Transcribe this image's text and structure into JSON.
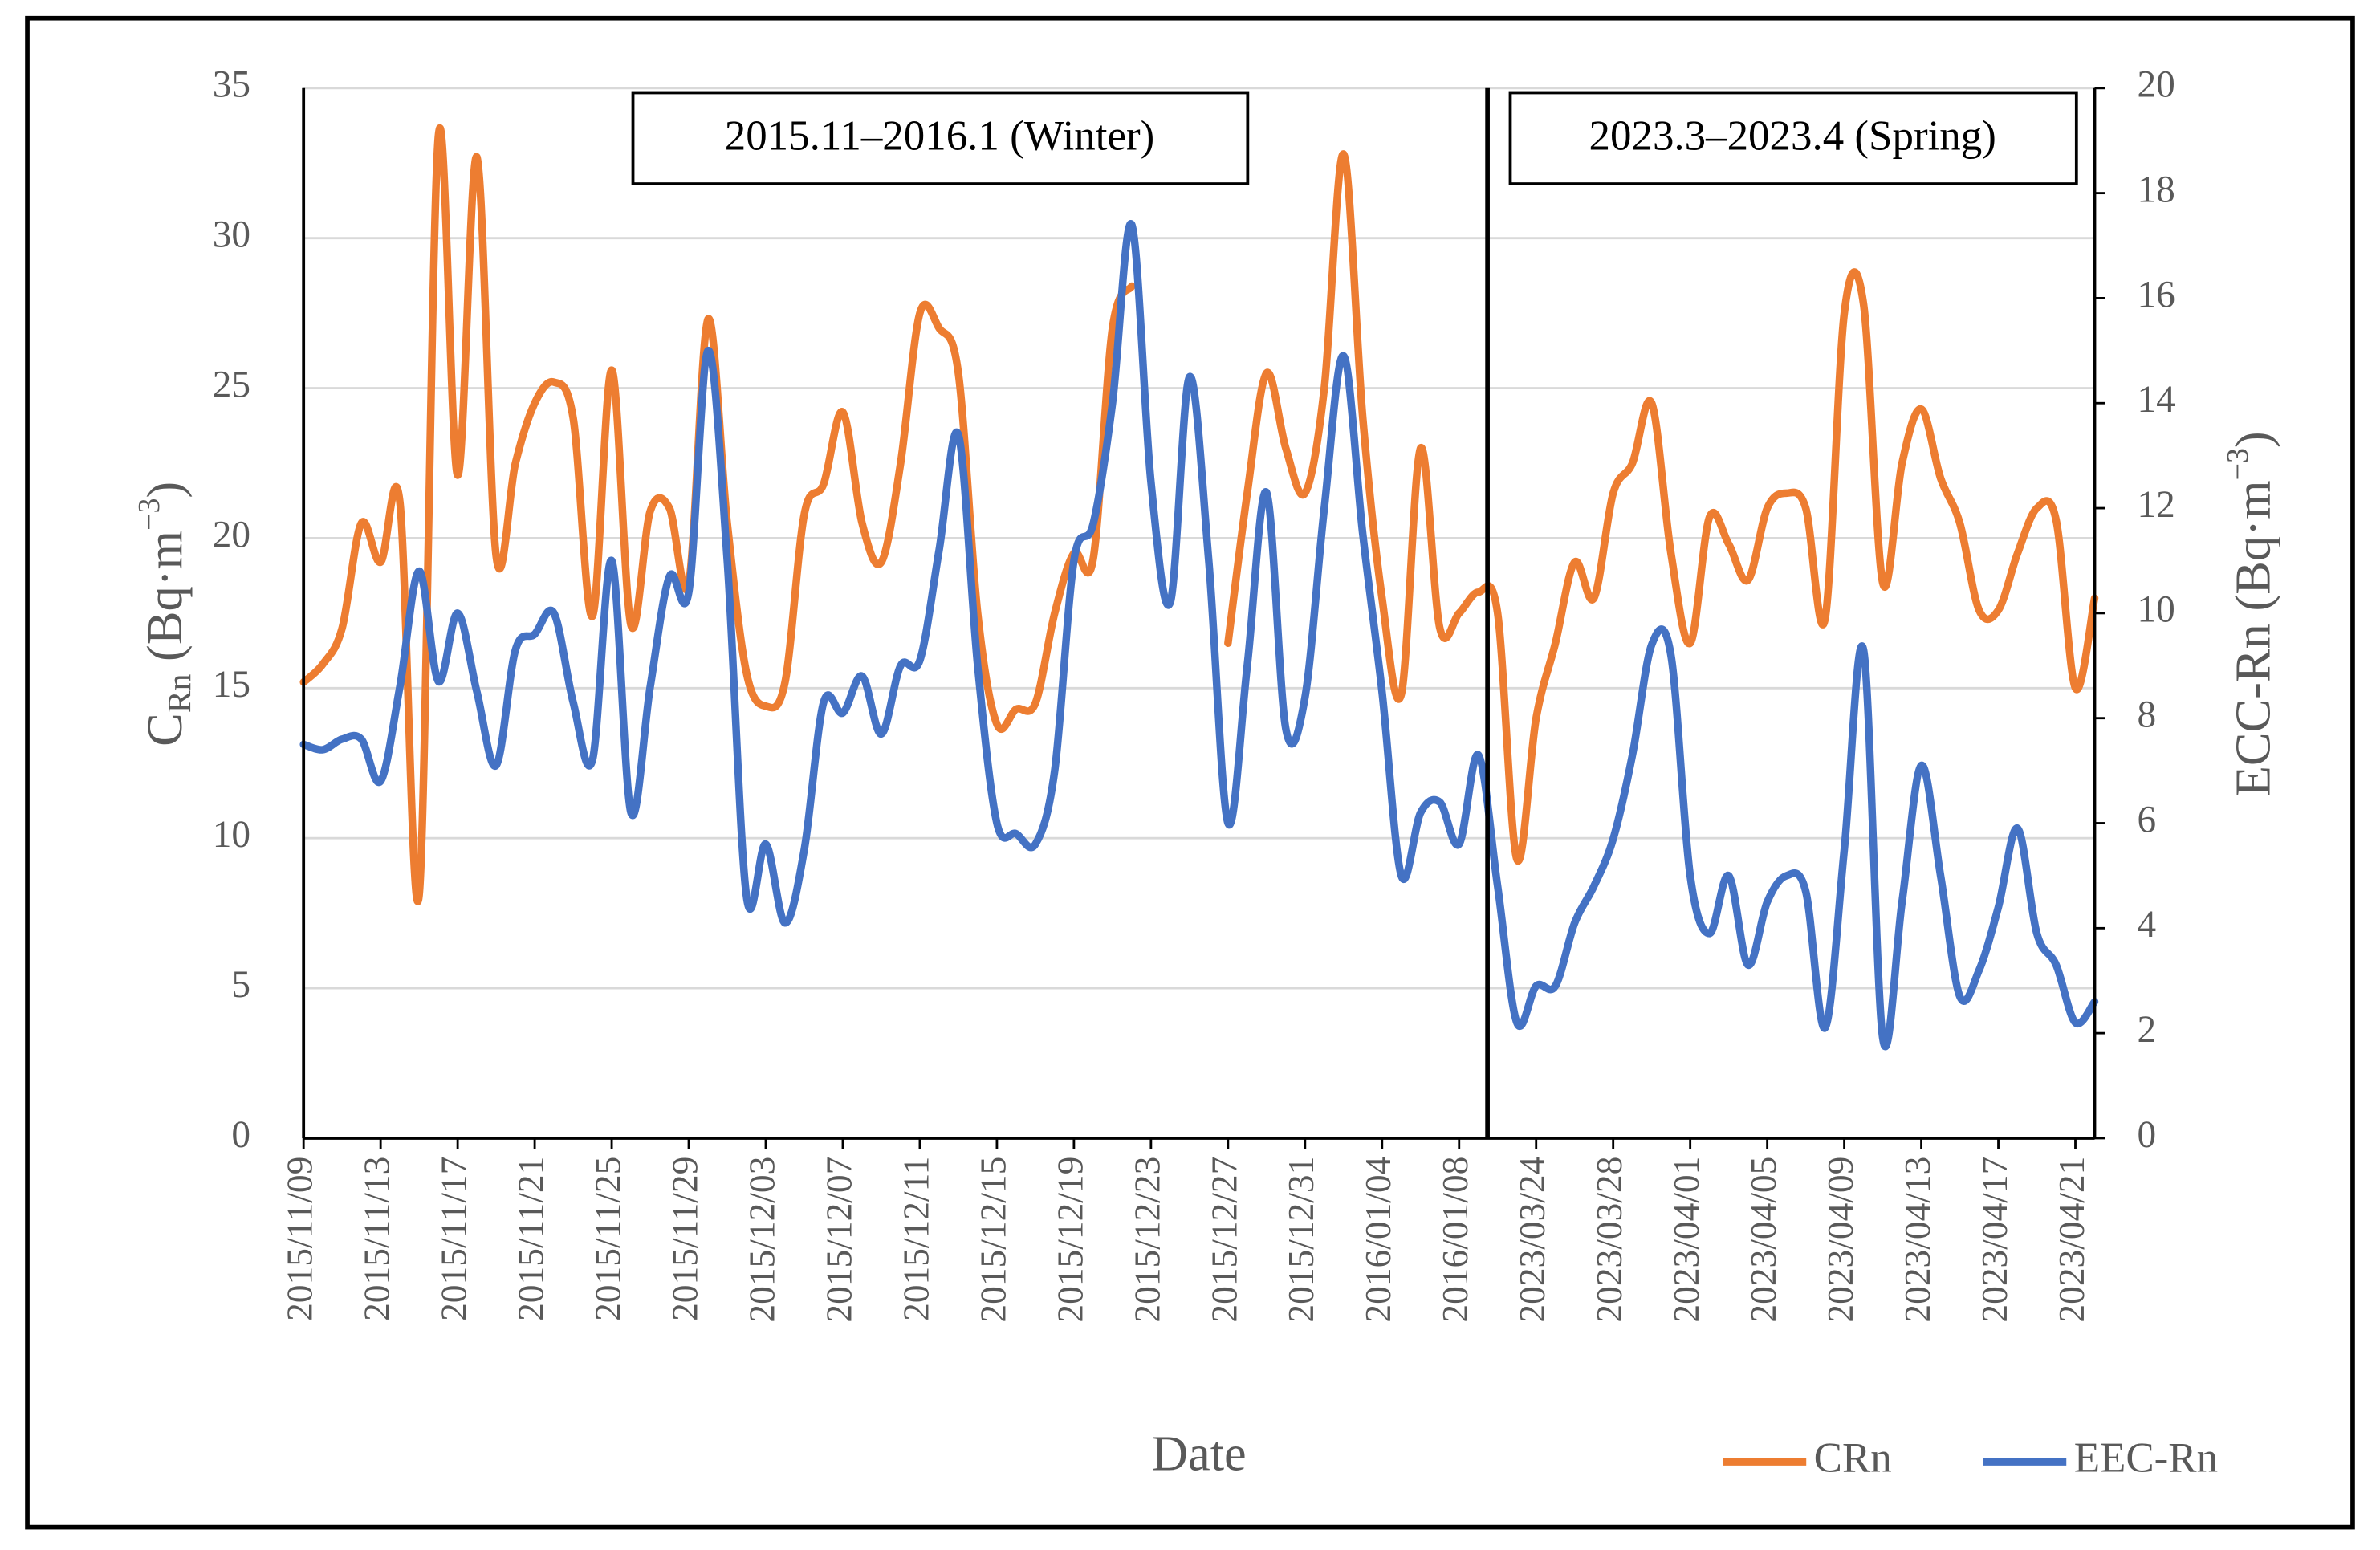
{
  "chart_data": {
    "type": "line",
    "xlabel": "Date",
    "ylabel": {
      "main": "C",
      "sub": "Rn",
      "unit": " (Bq·m",
      "sup": "−3",
      "end": ")"
    },
    "y2label": {
      "main": "ECC-Rn",
      "unit": " (Bq·m",
      "sup": "−3",
      "end": ")"
    },
    "annotations": [
      "2015.11–2016.1 (Winter)",
      "2023.3–2023.4 (Spring)"
    ],
    "categories": [
      "2015/11/09",
      null,
      null,
      null,
      "2015/11/13",
      null,
      null,
      null,
      "2015/11/17",
      null,
      null,
      null,
      "2015/11/21",
      null,
      null,
      null,
      "2015/11/25",
      null,
      null,
      null,
      "2015/11/29",
      null,
      null,
      null,
      "2015/12/03",
      null,
      null,
      null,
      "2015/12/07",
      null,
      null,
      null,
      "2015/12/11",
      null,
      null,
      null,
      "2015/12/15",
      null,
      null,
      null,
      "2015/12/19",
      null,
      null,
      null,
      "2015/12/23",
      null,
      null,
      null,
      "2015/12/27",
      null,
      null,
      null,
      "2015/12/31",
      null,
      null,
      null,
      "2016/01/04",
      null,
      null,
      null,
      "2016/01/08",
      null,
      null,
      null,
      "2023/03/24",
      null,
      null,
      null,
      "2023/03/28",
      null,
      null,
      null,
      "2023/04/01",
      null,
      null,
      null,
      "2023/04/05",
      null,
      null,
      null,
      "2023/04/09",
      null,
      null,
      null,
      "2023/04/13",
      null,
      null,
      null,
      "2023/04/17",
      null,
      null,
      null,
      "2023/04/21",
      null
    ],
    "series": [
      {
        "name": "CRn",
        "color": "#ed7d31",
        "values": [
          15.2,
          15.8,
          17.0,
          20.5,
          19.2,
          21.2,
          8.1,
          33.4,
          22.1,
          32.7,
          19.4,
          22.5,
          24.5,
          25.2,
          24.0,
          17.4,
          25.6,
          17.1,
          20.9,
          21.0,
          18.5,
          27.3,
          20.5,
          15.5,
          14.4,
          15.2,
          20.8,
          21.8,
          24.2,
          20.5,
          19.2,
          22.5,
          27.5,
          27.0,
          25.5,
          17.5,
          13.8,
          14.3,
          14.5,
          17.5,
          19.5,
          19.3,
          27.0,
          28.4,
          null,
          null,
          null,
          null,
          16.5,
          21.5,
          25.5,
          23.0,
          21.5,
          25.0,
          32.8,
          24.0,
          18.0,
          14.8,
          23.0,
          17.0,
          17.5,
          18.2,
          17.5,
          9.3,
          14.0,
          16.5,
          19.2,
          18.0,
          21.5,
          22.5,
          24.5,
          19.5,
          16.5,
          20.7,
          19.8,
          18.6,
          21.0,
          21.5,
          21.0,
          17.3,
          27.5,
          27.8,
          18.5,
          22.5,
          24.3,
          22.0,
          20.5,
          17.6,
          17.6,
          19.5,
          21.0,
          20.6,
          15.0,
          18.0
        ]
      },
      {
        "name": "EEC-Rn",
        "color": "#4472c4",
        "axis": "y2",
        "values": [
          7.5,
          7.4,
          7.6,
          7.6,
          6.8,
          8.6,
          10.8,
          8.7,
          10.0,
          8.5,
          7.1,
          9.3,
          9.6,
          10.0,
          8.3,
          7.2,
          11.0,
          6.2,
          8.6,
          10.7,
          10.4,
          15.0,
          11.0,
          4.6,
          5.6,
          4.1,
          5.5,
          8.3,
          8.1,
          8.8,
          7.7,
          9.0,
          9.1,
          11.2,
          13.4,
          9.0,
          6.0,
          5.8,
          5.6,
          7.0,
          11.0,
          11.7,
          14.0,
          17.4,
          12.5,
          10.2,
          14.5,
          11.0,
          6.0,
          9.0,
          12.3,
          7.8,
          8.4,
          12.0,
          14.9,
          11.5,
          8.5,
          5.0,
          6.2,
          6.4,
          5.6,
          7.3,
          4.8,
          2.2,
          2.9,
          2.9,
          4.1,
          4.8,
          5.7,
          7.3,
          9.4,
          9.2,
          5.0,
          3.9,
          5.0,
          3.3,
          4.5,
          5.0,
          4.7,
          2.1,
          5.5,
          9.3,
          1.9,
          4.5,
          7.1,
          5.0,
          2.7,
          3.2,
          4.4,
          5.9,
          3.9,
          3.3,
          2.2,
          2.6
        ]
      }
    ],
    "ylim": [
      0,
      35
    ],
    "yticks": [
      0,
      5,
      10,
      15,
      20,
      25,
      30,
      35
    ],
    "y2lim": [
      0,
      20
    ],
    "y2ticks": [
      0,
      2,
      4,
      6,
      8,
      10,
      12,
      14,
      16,
      18,
      20
    ],
    "grid": true,
    "legend": "bottom-right"
  }
}
